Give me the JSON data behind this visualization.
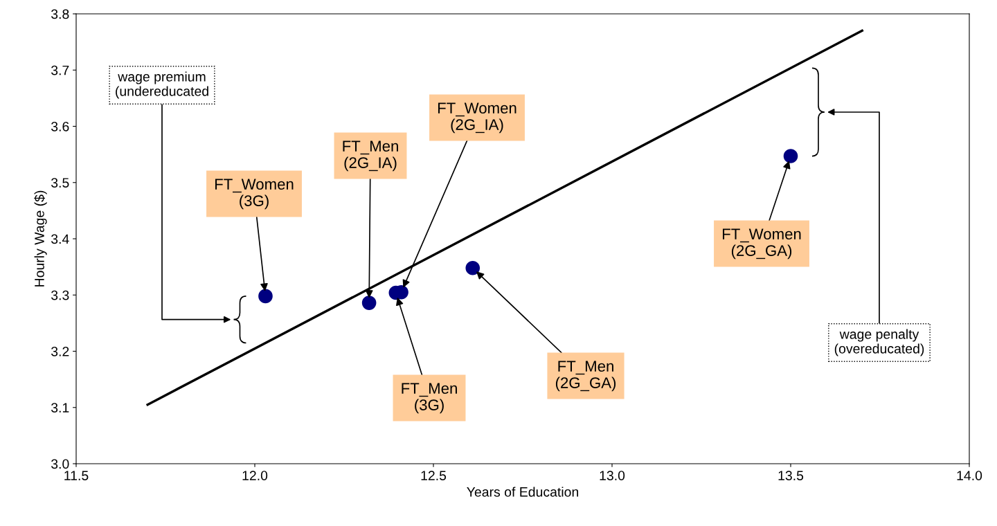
{
  "chart_data": {
    "type": "scatter",
    "xlabel": "Years of Education",
    "ylabel": "Hourly Wage ($)",
    "xlim": [
      11.5,
      14.0
    ],
    "ylim": [
      3.0,
      3.8
    ],
    "xticks": [
      11.5,
      {
        "value": 12.0,
        "label": "12.0"
      },
      12.5,
      {
        "value": 13.0,
        "label": "13.0"
      },
      13.5,
      {
        "value": 14.0,
        "label": "14.0"
      }
    ],
    "yticks": [
      {
        "value": 3.0,
        "label": "3.0"
      },
      3.1,
      3.2,
      3.3,
      3.4,
      3.5,
      3.6,
      3.7,
      3.8
    ],
    "grid": false,
    "legend": false,
    "marker": "circle",
    "series": [
      {
        "color": "#000080",
        "x": [
          12.03,
          12.32,
          12.41,
          12.395,
          12.61,
          13.5
        ],
        "values": [
          3.298,
          3.286,
          3.305,
          3.304,
          3.348,
          3.547
        ]
      },
      {
        "type": "line",
        "marker": "none",
        "color": "#000000",
        "x": [
          11.7,
          13.7
        ],
        "values": [
          3.105,
          3.77
        ]
      }
    ],
    "annotations": [
      {
        "text": "FT_Women\n(3G)",
        "x": 12.03,
        "y": 3.298
      },
      {
        "text": "FT_Men\n(2G_IA)",
        "x": 12.32,
        "y": 3.286
      },
      {
        "text": "FT_Women\n(2G_IA)",
        "x": 12.41,
        "y": 3.305
      },
      {
        "text": "FT_Men\n(3G)",
        "x": 12.395,
        "y": 3.304
      },
      {
        "text": "FT_Men\n(2G_GA)",
        "x": 12.61,
        "y": 3.348
      },
      {
        "text": "FT_Women\n(2G_GA)",
        "x": 13.5,
        "y": 3.547
      },
      "wage premium\n(undereducated",
      "wage penalty\n(overeducated)"
    ]
  }
}
